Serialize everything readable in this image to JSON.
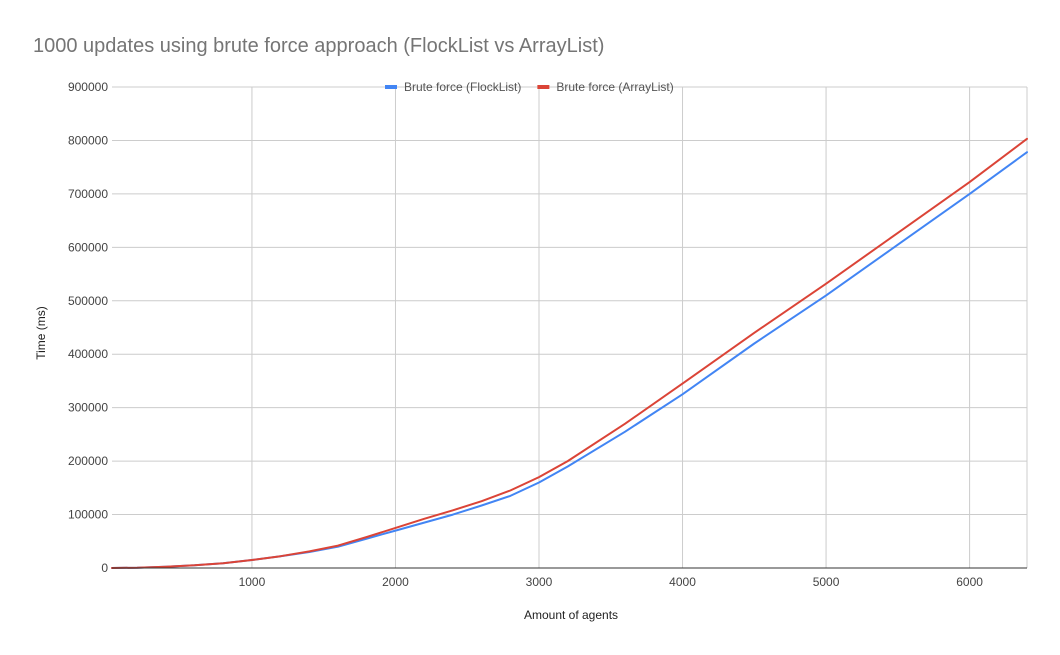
{
  "chart_data": {
    "type": "line",
    "title": "1000 updates using brute force approach (FlockList vs ArrayList)",
    "xlabel": "Amount of agents",
    "ylabel": "Time (ms)",
    "xlim": [
      25,
      6400
    ],
    "ylim": [
      0,
      900000
    ],
    "x_ticks": [
      1000,
      2000,
      3000,
      4000,
      5000,
      6000
    ],
    "x_tick_labels": [
      "1000",
      "2000",
      "3000",
      "4000",
      "5000",
      "6000"
    ],
    "y_ticks": [
      0,
      100000,
      200000,
      300000,
      400000,
      500000,
      600000,
      700000,
      800000,
      900000
    ],
    "y_tick_labels": [
      "0",
      "100000",
      "200000",
      "300000",
      "400000",
      "500000",
      "600000",
      "700000",
      "800000",
      "900000"
    ],
    "grid": true,
    "legend_position": "top-center",
    "series": [
      {
        "name": "Brute force (FlockList)",
        "color": "#4285f4",
        "points": [
          [
            25,
            0
          ],
          [
            200,
            500
          ],
          [
            400,
            2500
          ],
          [
            600,
            5000
          ],
          [
            800,
            9000
          ],
          [
            1000,
            15000
          ],
          [
            1200,
            22000
          ],
          [
            1400,
            30000
          ],
          [
            1600,
            40000
          ],
          [
            1800,
            55000
          ],
          [
            2000,
            70000
          ],
          [
            2200,
            85000
          ],
          [
            2400,
            100000
          ],
          [
            2600,
            117000
          ],
          [
            2800,
            135000
          ],
          [
            3000,
            160000
          ],
          [
            3200,
            190000
          ],
          [
            3600,
            255000
          ],
          [
            4000,
            325000
          ],
          [
            4500,
            420000
          ],
          [
            5000,
            510000
          ],
          [
            5500,
            605000
          ],
          [
            6000,
            700000
          ],
          [
            6400,
            778000
          ]
        ]
      },
      {
        "name": "Brute force (ArrayList)",
        "color": "#db4437",
        "points": [
          [
            25,
            0
          ],
          [
            200,
            500
          ],
          [
            400,
            2500
          ],
          [
            600,
            5000
          ],
          [
            800,
            9000
          ],
          [
            1000,
            15000
          ],
          [
            1200,
            22000
          ],
          [
            1400,
            31000
          ],
          [
            1600,
            42000
          ],
          [
            1800,
            58000
          ],
          [
            2000,
            75000
          ],
          [
            2200,
            92000
          ],
          [
            2400,
            108000
          ],
          [
            2600,
            125000
          ],
          [
            2800,
            145000
          ],
          [
            3000,
            170000
          ],
          [
            3200,
            200000
          ],
          [
            3600,
            270000
          ],
          [
            4000,
            345000
          ],
          [
            4500,
            440000
          ],
          [
            5000,
            532000
          ],
          [
            5500,
            627000
          ],
          [
            6000,
            722000
          ],
          [
            6400,
            803000
          ]
        ]
      }
    ]
  }
}
